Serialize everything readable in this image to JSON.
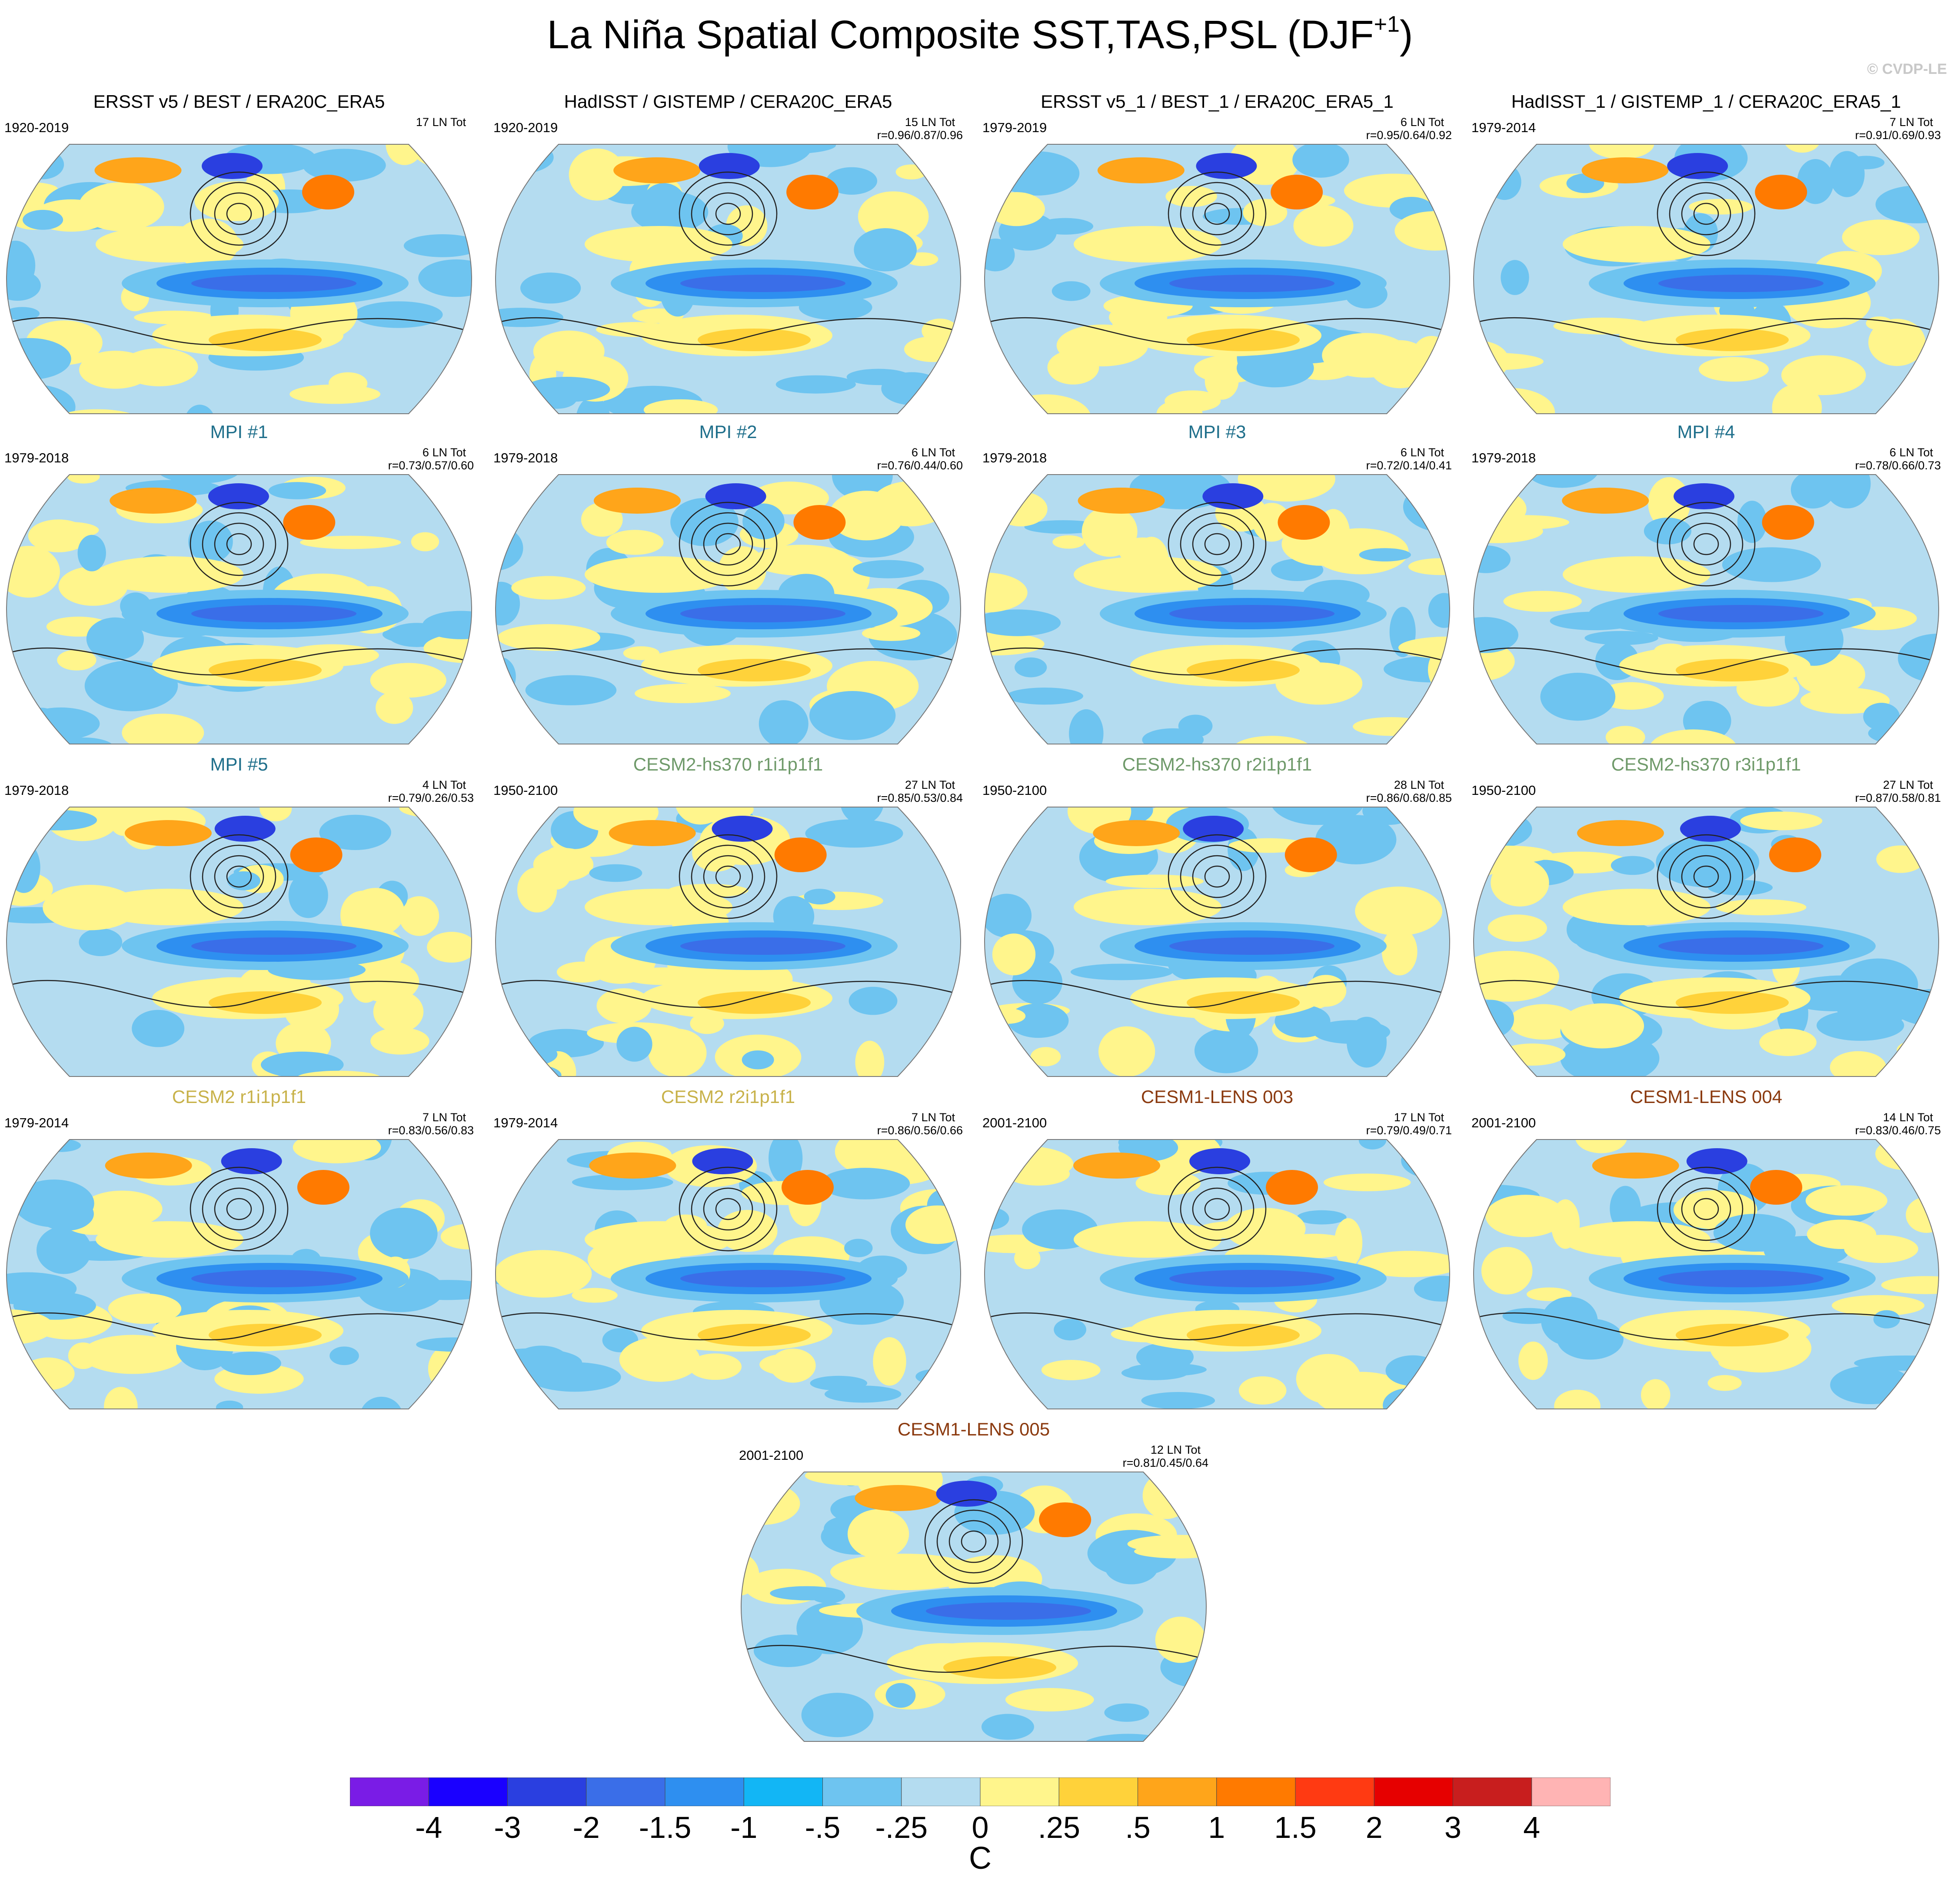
{
  "header": {
    "title": "La Niña Spatial Composite SST,TAS,PSL (DJF",
    "title_superscript": "+1",
    "title_suffix": ")",
    "copyright": "© CVDP-LE"
  },
  "panels": [
    {
      "title": "ERSST v5 / BEST / ERA20C_ERA5",
      "title_color": "#000000",
      "period": "1920-2019",
      "count": "17 LN Tot",
      "corr": ""
    },
    {
      "title": "HadISST / GISTEMP / CERA20C_ERA5",
      "title_color": "#000000",
      "period": "1920-2019",
      "count": "15 LN Tot",
      "corr": "r=0.96/0.87/0.96"
    },
    {
      "title": "ERSST v5_1 / BEST_1 / ERA20C_ERA5_1",
      "title_color": "#000000",
      "period": "1979-2019",
      "count": "6 LN Tot",
      "corr": "r=0.95/0.64/0.92"
    },
    {
      "title": "HadISST_1 / GISTEMP_1 / CERA20C_ERA5_1",
      "title_color": "#000000",
      "period": "1979-2014",
      "count": "7 LN Tot",
      "corr": "r=0.91/0.69/0.93"
    },
    {
      "title": "MPI #1",
      "title_color": "#1f6f8b",
      "period": "1979-2018",
      "count": "6 LN Tot",
      "corr": "r=0.73/0.57/0.60"
    },
    {
      "title": "MPI #2",
      "title_color": "#1f6f8b",
      "period": "1979-2018",
      "count": "6 LN Tot",
      "corr": "r=0.76/0.44/0.60"
    },
    {
      "title": "MPI #3",
      "title_color": "#1f6f8b",
      "period": "1979-2018",
      "count": "6 LN Tot",
      "corr": "r=0.72/0.14/0.41"
    },
    {
      "title": "MPI #4",
      "title_color": "#1f6f8b",
      "period": "1979-2018",
      "count": "6 LN Tot",
      "corr": "r=0.78/0.66/0.73"
    },
    {
      "title": "MPI #5",
      "title_color": "#1f6f8b",
      "period": "1979-2018",
      "count": "4 LN Tot",
      "corr": "r=0.79/0.26/0.53"
    },
    {
      "title": "CESM2-hs370 r1i1p1f1",
      "title_color": "#6f9a6a",
      "period": "1950-2100",
      "count": "27 LN Tot",
      "corr": "r=0.85/0.53/0.84"
    },
    {
      "title": "CESM2-hs370 r2i1p1f1",
      "title_color": "#6f9a6a",
      "period": "1950-2100",
      "count": "28 LN Tot",
      "corr": "r=0.86/0.68/0.85"
    },
    {
      "title": "CESM2-hs370 r3i1p1f1",
      "title_color": "#6f9a6a",
      "period": "1950-2100",
      "count": "27 LN Tot",
      "corr": "r=0.87/0.58/0.81"
    },
    {
      "title": "CESM2 r1i1p1f1",
      "title_color": "#c8b24a",
      "period": "1979-2014",
      "count": "7 LN Tot",
      "corr": "r=0.83/0.56/0.83"
    },
    {
      "title": "CESM2 r2i1p1f1",
      "title_color": "#c8b24a",
      "period": "1979-2014",
      "count": "7 LN Tot",
      "corr": "r=0.86/0.56/0.66"
    },
    {
      "title": "CESM1-LENS 003",
      "title_color": "#8b3a0f",
      "period": "2001-2100",
      "count": "17 LN Tot",
      "corr": "r=0.79/0.49/0.71"
    },
    {
      "title": "CESM1-LENS 004",
      "title_color": "#8b3a0f",
      "period": "2001-2100",
      "count": "14 LN Tot",
      "corr": "r=0.83/0.46/0.75"
    },
    {
      "title": "CESM1-LENS 005",
      "title_color": "#8b3a0f",
      "period": "2001-2100",
      "count": "12 LN Tot",
      "corr": "r=0.81/0.45/0.64"
    }
  ],
  "colorbar": {
    "unit": "C",
    "labels": [
      "-4",
      "-3",
      "-2",
      "-1.5",
      "-1",
      "-.5",
      "-.25",
      "0",
      ".25",
      ".5",
      "1",
      "1.5",
      "2",
      "3",
      "4"
    ],
    "colors": [
      "#7a1ce6",
      "#1a00ff",
      "#2a3fe0",
      "#3a6ee8",
      "#2e8ff0",
      "#12b6f5",
      "#6ec4f0",
      "#b4dcf0",
      "#fff58c",
      "#ffd23a",
      "#ffa51a",
      "#ff7a00",
      "#ff3a12",
      "#e60000",
      "#c81e1e",
      "#ffb4b4"
    ]
  }
}
